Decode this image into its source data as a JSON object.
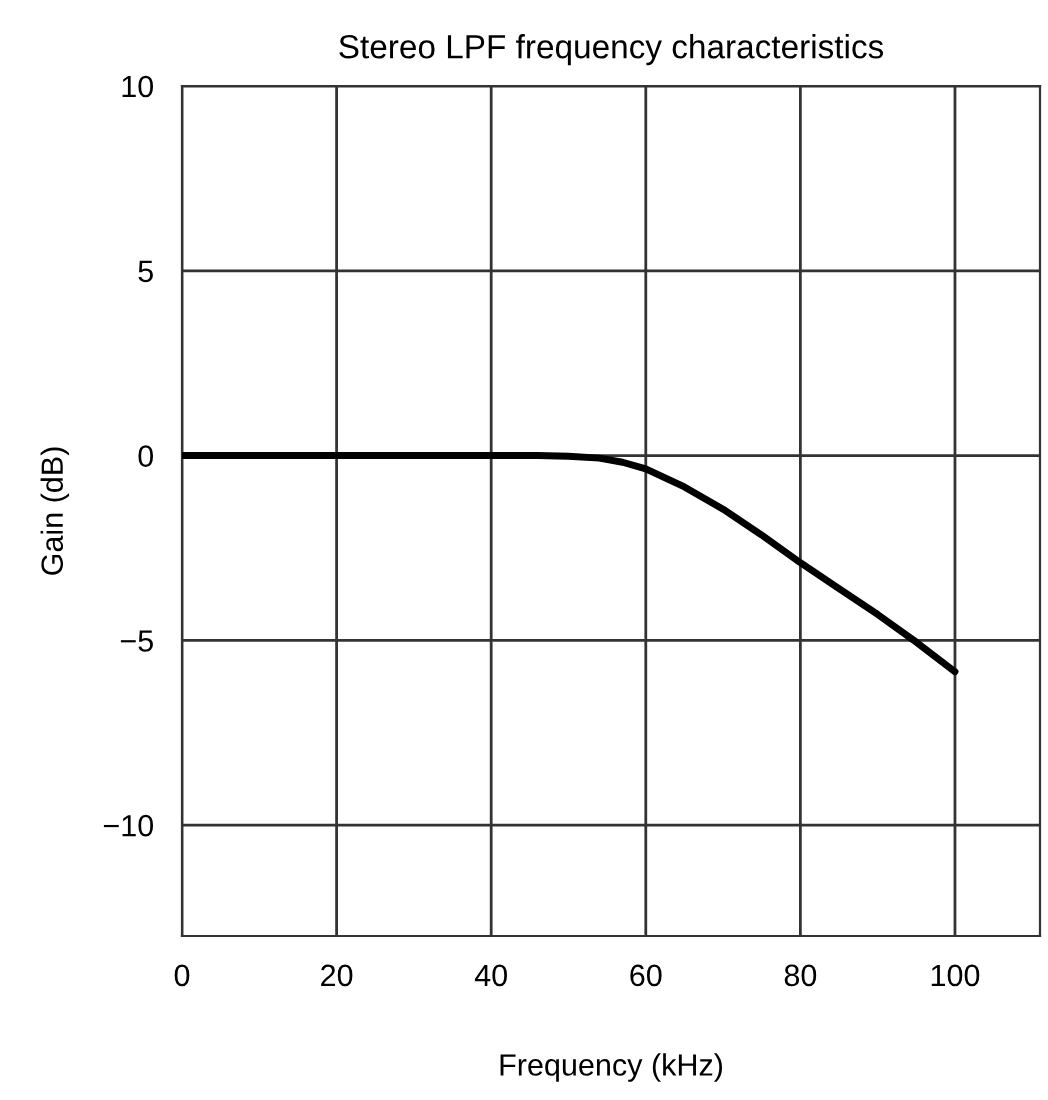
{
  "chart_data": {
    "type": "line",
    "title": "Stereo LPF frequency characteristics",
    "xlabel": "Frequency (kHz)",
    "ylabel": "Gain (dB)",
    "series": [
      {
        "color": "#000000",
        "x": [
          0,
          46,
          50,
          54,
          57,
          60,
          65,
          70,
          75,
          80,
          85,
          90,
          95,
          100
        ],
        "values": [
          0,
          0,
          -0.02,
          -0.07,
          -0.18,
          -0.36,
          -0.85,
          -1.45,
          -2.15,
          -2.9,
          -3.6,
          -4.3,
          -5.05,
          -5.85
        ]
      }
    ],
    "xlim": [
      0,
      111
    ],
    "ylim": [
      -13,
      10
    ],
    "xticks": [
      0,
      20,
      40,
      60,
      80,
      100
    ],
    "yticks": [
      {
        "value": -10,
        "label": "−10"
      },
      {
        "value": -5,
        "label": "−5"
      },
      0,
      5,
      10
    ],
    "grid": true,
    "legend": false,
    "marker": "none",
    "line_style": "solid"
  }
}
